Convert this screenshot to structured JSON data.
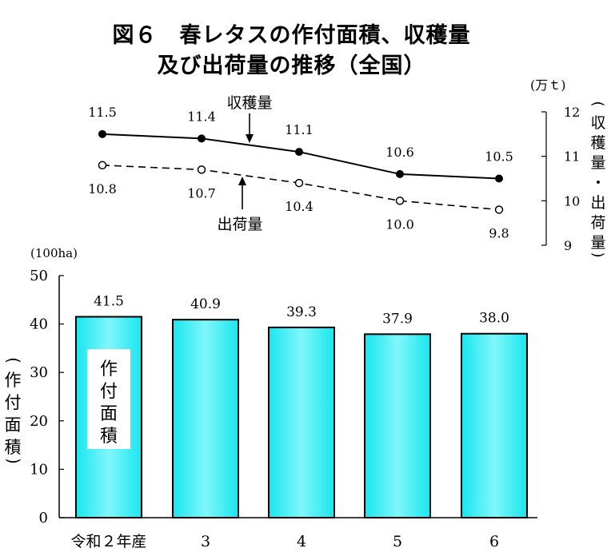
{
  "title_line1": "図６　春レタスの作付面積、収穫量",
  "title_line2": "及び出荷量の推移（全国）",
  "chart_data": [
    {
      "type": "bar",
      "categories": [
        "令和２年産",
        "3",
        "4",
        "5",
        "6"
      ],
      "values": [
        41.5,
        40.9,
        39.3,
        37.9,
        38.0
      ],
      "value_labels": [
        "41.5",
        "40.9",
        "39.3",
        "37.9",
        "38.0"
      ],
      "ylabel": "作付面積",
      "unit": "(100ha)",
      "ylim": [
        0,
        50
      ],
      "yticks": [
        "0",
        "10",
        "20",
        "30",
        "40",
        "50"
      ],
      "bar_annotation": "作付面積",
      "bar_color": "#33e8ee",
      "grid": false
    },
    {
      "type": "line",
      "categories": [
        "令和２年産",
        "3",
        "4",
        "5",
        "6"
      ],
      "unit": "(万ｔ)",
      "ylabel": "収穫量・出荷量",
      "ylim": [
        9,
        12
      ],
      "yticks": [
        "9",
        "10",
        "11",
        "12"
      ],
      "axis_side": "right",
      "series": [
        {
          "name": "収穫量",
          "values": [
            11.5,
            11.4,
            11.1,
            10.6,
            10.5
          ],
          "labels": [
            "11.5",
            "11.4",
            "11.1",
            "10.6",
            "10.5"
          ],
          "marker": "filled-circle",
          "line": "solid"
        },
        {
          "name": "出荷量",
          "values": [
            10.8,
            10.7,
            10.4,
            10.0,
            9.8
          ],
          "labels": [
            "10.8",
            "10.7",
            "10.4",
            "10.0",
            "9.8"
          ],
          "marker": "open-circle",
          "line": "dashed"
        }
      ]
    }
  ]
}
